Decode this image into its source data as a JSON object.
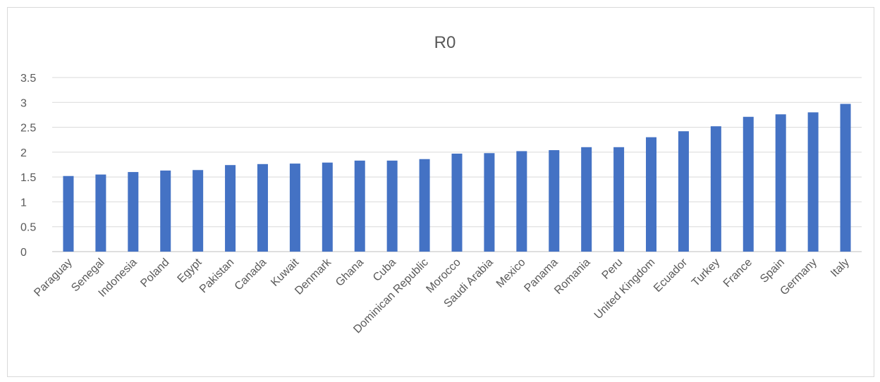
{
  "chart_data": {
    "type": "bar",
    "title": "R0",
    "xlabel": "",
    "ylabel": "",
    "ylim": [
      0,
      3.5
    ],
    "yticks": [
      "0",
      "0.5",
      "1",
      "1.5",
      "2",
      "2.5",
      "3",
      "3.5"
    ],
    "grid": true,
    "legend": "none",
    "bar_color": "#4472c4",
    "categories": [
      "Paraguay",
      "Senegal",
      "Indonesia",
      "Poland",
      "Egypt",
      "Pakistan",
      "Canada",
      "Kuwait",
      "Denmark",
      "Ghana",
      "Cuba",
      "Dominican Republic",
      "Morocco",
      "Saudi Arabia",
      "Mexico",
      "Panama",
      "Romania",
      "Peru",
      "United Kingdom",
      "Ecuador",
      "Turkey",
      "France",
      "Spain",
      "Germany",
      "Italy"
    ],
    "values": [
      1.52,
      1.55,
      1.6,
      1.63,
      1.64,
      1.74,
      1.76,
      1.77,
      1.79,
      1.83,
      1.83,
      1.86,
      1.97,
      1.98,
      2.02,
      2.04,
      2.1,
      2.1,
      2.3,
      2.42,
      2.52,
      2.71,
      2.76,
      2.8,
      2.97
    ]
  }
}
